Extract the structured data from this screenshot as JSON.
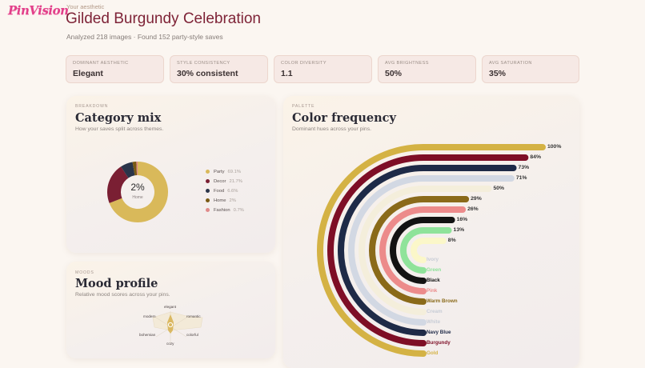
{
  "brand": {
    "logo_text": "PinVision"
  },
  "header": {
    "eyebrow": "Your aesthetic",
    "title": "Gilded Burgundy Celebration",
    "subtitle": "Analyzed 218 images · Found 152 party-style saves"
  },
  "stats": [
    {
      "label": "Dominant aesthetic",
      "value": "Elegant"
    },
    {
      "label": "Style consistency",
      "value": "30% consistent"
    },
    {
      "label": "Color diversity",
      "value": "1.1"
    },
    {
      "label": "Avg brightness",
      "value": "50%"
    },
    {
      "label": "Avg saturation",
      "value": "35%"
    }
  ],
  "breakdown": {
    "kicker": "Breakdown",
    "title": "Category mix",
    "description": "How your saves split across themes.",
    "donut_center_value": "2%",
    "donut_center_label": "Home",
    "categories": [
      {
        "name": "Party",
        "percent": "69.1%",
        "value": 69.1,
        "color": "#d9b95a"
      },
      {
        "name": "Decor",
        "percent": "21.7%",
        "value": 21.7,
        "color": "#7a1f33"
      },
      {
        "name": "Food",
        "percent": "6.6%",
        "value": 6.6,
        "color": "#2a3449"
      },
      {
        "name": "Home",
        "percent": "2%",
        "value": 2,
        "color": "#7a5a14"
      },
      {
        "name": "Fashion",
        "percent": "0.7%",
        "value": 0.7,
        "color": "#e08a8a"
      }
    ]
  },
  "moods": {
    "kicker": "Moods",
    "title": "Mood profile",
    "description": "Relative mood scores across your pins.",
    "axes": [
      "elegant",
      "romantic",
      "colorful",
      "cozy",
      "bohemian",
      "modern"
    ]
  },
  "palette": {
    "kicker": "Palette",
    "title": "Color frequency",
    "description": "Dominant hues across your pins.",
    "colors": [
      {
        "name": "Gold",
        "percent": "100%",
        "value": 100,
        "color": "#d4b244"
      },
      {
        "name": "Burgundy",
        "percent": "84%",
        "value": 84,
        "color": "#7e0e26"
      },
      {
        "name": "Navy Blue",
        "percent": "73%",
        "value": 73,
        "color": "#1e2a47"
      },
      {
        "name": "White",
        "percent": "71%",
        "value": 71,
        "color": "#d2d8e3"
      },
      {
        "name": "Cream",
        "percent": "50%",
        "value": 50,
        "color": "#f4eedb"
      },
      {
        "name": "Warm Brown",
        "percent": "29%",
        "value": 29,
        "color": "#8a6a1a"
      },
      {
        "name": "Pink",
        "percent": "26%",
        "value": 26,
        "color": "#ec8b8b"
      },
      {
        "name": "Black",
        "percent": "16%",
        "value": 16,
        "color": "#121212"
      },
      {
        "name": "Green",
        "percent": "13%",
        "value": 13,
        "color": "#8fe39a"
      },
      {
        "name": "Ivory",
        "percent": "8%",
        "value": 8,
        "color": "#fbf7c9"
      }
    ]
  }
}
